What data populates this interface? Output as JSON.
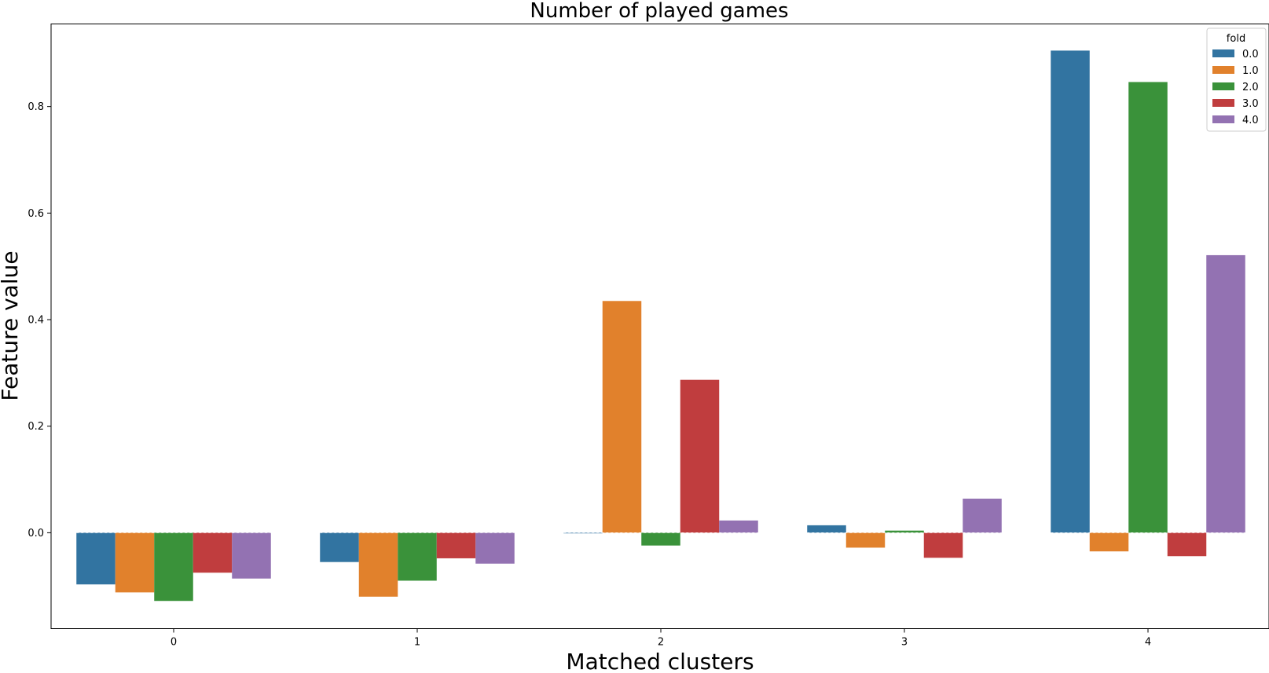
{
  "chart_data": {
    "type": "bar",
    "title": "Number of played games",
    "xlabel": "Matched clusters",
    "ylabel": "Feature value",
    "categories": [
      "0",
      "1",
      "2",
      "3",
      "4"
    ],
    "ylim": [
      -0.18,
      0.955
    ],
    "yticks": [
      0.0,
      0.2,
      0.4,
      0.6,
      0.8
    ],
    "ytick_labels": [
      "0.0",
      "0.2",
      "0.4",
      "0.6",
      "0.8"
    ],
    "grid": false,
    "legend": {
      "title": "fold",
      "placement": "top-right"
    },
    "series": [
      {
        "name": "0.0",
        "color": "#3274a1",
        "values": [
          -0.097,
          -0.055,
          -0.001,
          0.014,
          0.905
        ]
      },
      {
        "name": "1.0",
        "color": "#e1812c",
        "values": [
          -0.112,
          -0.12,
          0.435,
          -0.028,
          -0.035
        ]
      },
      {
        "name": "2.0",
        "color": "#3a923a",
        "values": [
          -0.128,
          -0.09,
          -0.024,
          0.004,
          0.846
        ]
      },
      {
        "name": "3.0",
        "color": "#c03d3e",
        "values": [
          -0.075,
          -0.048,
          0.287,
          -0.047,
          -0.044
        ]
      },
      {
        "name": "4.0",
        "color": "#9372b2",
        "values": [
          -0.086,
          -0.058,
          0.023,
          0.064,
          0.521
        ]
      }
    ]
  }
}
